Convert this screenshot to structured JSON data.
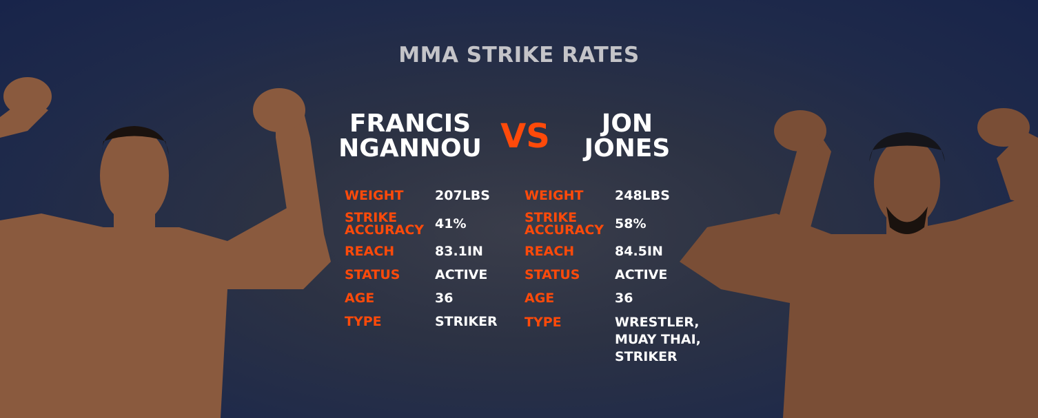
{
  "title": "MMA STRIKE RATES",
  "vs": "VS",
  "accent_color": "#ff4a0a",
  "fighters": [
    {
      "name_line1": "FRANCIS",
      "name_line2": "NGANNOU",
      "stats": [
        {
          "label": "WEIGHT",
          "value": "207LBS"
        },
        {
          "label_line1": "STRIKE",
          "label_line2": "ACCURACY",
          "value": "41%"
        },
        {
          "label": "REACH",
          "value": "83.1IN"
        },
        {
          "label": "STATUS",
          "value": "ACTIVE"
        },
        {
          "label": "AGE",
          "value": "36"
        },
        {
          "label": "TYPE",
          "value": "STRIKER"
        }
      ]
    },
    {
      "name_line1": "JON",
      "name_line2": "JONES",
      "stats": [
        {
          "label": "WEIGHT",
          "value": "248LBS"
        },
        {
          "label_line1": "STRIKE",
          "label_line2": "ACCURACY",
          "value": "58%"
        },
        {
          "label": "REACH",
          "value": "84.5IN"
        },
        {
          "label": "STATUS",
          "value": "ACTIVE"
        },
        {
          "label": "AGE",
          "value": "36"
        },
        {
          "label": "TYPE",
          "value_lines": [
            "WRESTLER,",
            "MUAY THAI,",
            "STRIKER"
          ]
        }
      ]
    }
  ]
}
